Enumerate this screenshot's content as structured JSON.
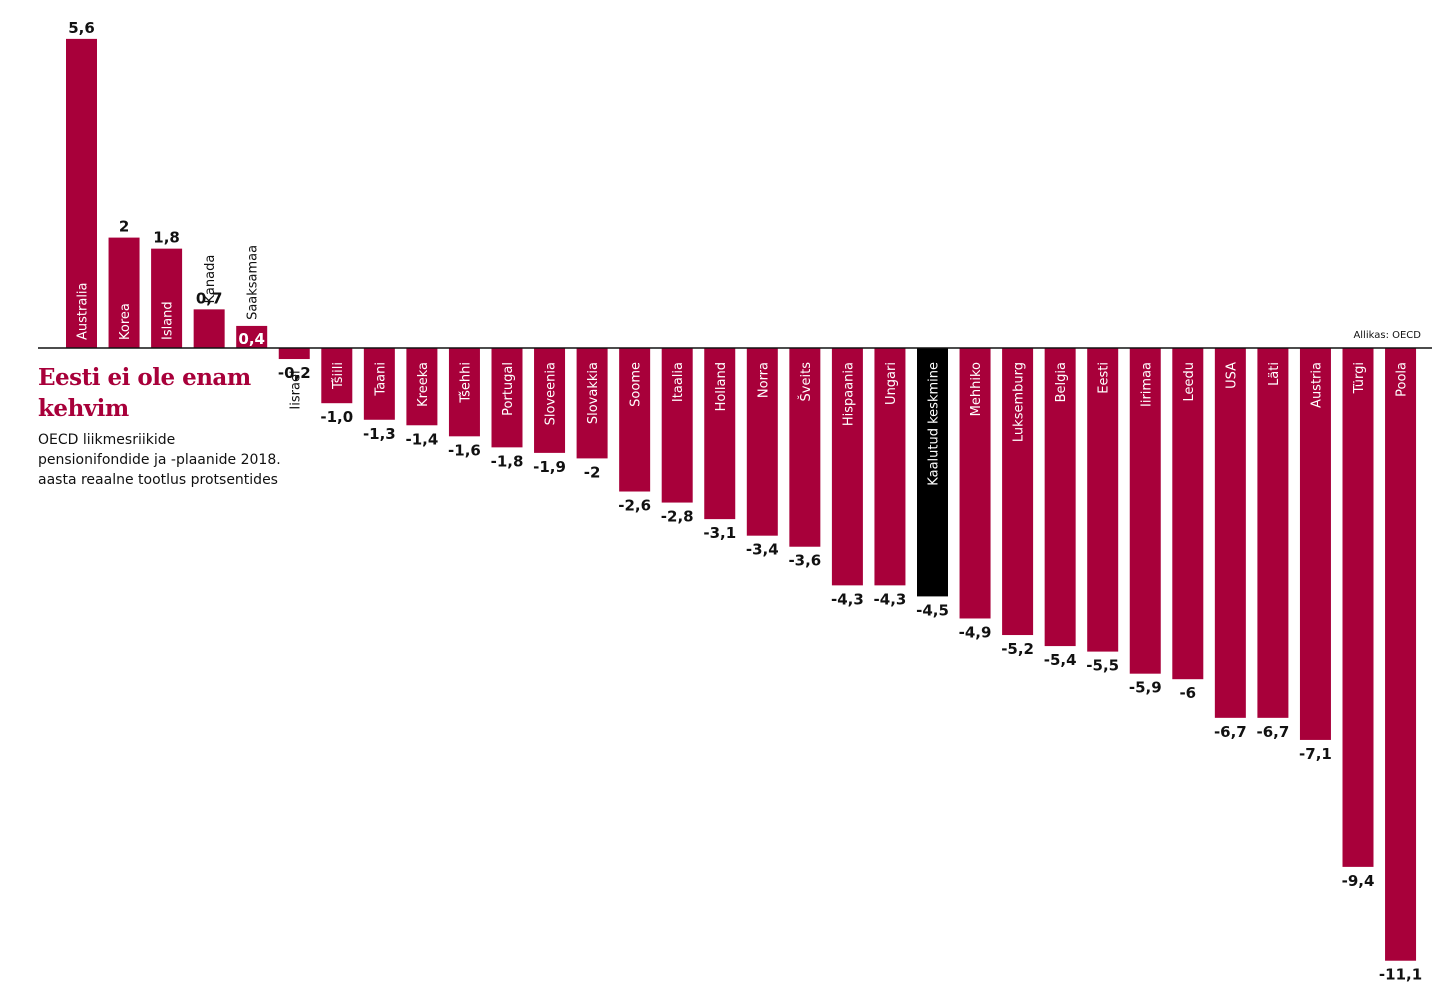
{
  "title": "Eesti ei ole enam kehvim",
  "subtitle": "OECD liikmesriikide pensionifondide ja -plaanide 2018. aasta reaalne tootlus protsentides",
  "source": "Allikas: OECD",
  "colors": {
    "bar": "#a8003a",
    "highlight": "#000000",
    "axis": "#111111"
  },
  "chart_data": {
    "type": "bar",
    "title": "Eesti ei ole enam kehvim",
    "subtitle": "OECD liikmesriikide pensionifondide ja -plaanide 2018. aasta reaalne tootlus protsentides",
    "xlabel": "",
    "ylabel": "",
    "ylim": [
      -11.1,
      5.6
    ],
    "grid": false,
    "legend": "none",
    "highlight": "Kaalutud keskmine",
    "categories": [
      "Australia",
      "Korea",
      "Island",
      "Kanada",
      "Saaksamaa",
      "Iisrael",
      "Tšiili",
      "Taani",
      "Kreeka",
      "Tšehhi",
      "Portugal",
      "Sloveenia",
      "Slovakkia",
      "Soome",
      "Itaalia",
      "Holland",
      "Norra",
      "Šveits",
      "Hispaania",
      "Ungari",
      "Kaalutud keskmine",
      "Mehhiko",
      "Luksemburg",
      "Belgia",
      "Eesti",
      "Iirimaa",
      "Leedu",
      "USA",
      "Läti",
      "Austria",
      "Türgi",
      "Poola"
    ],
    "values": [
      5.6,
      2,
      1.8,
      0.7,
      0.4,
      -0.2,
      -1.0,
      -1.3,
      -1.4,
      -1.6,
      -1.8,
      -1.9,
      -2,
      -2.6,
      -2.8,
      -3.1,
      -3.4,
      -3.6,
      -4.3,
      -4.3,
      -4.5,
      -4.9,
      -5.2,
      -5.4,
      -5.5,
      -5.9,
      -6,
      -6.7,
      -6.7,
      -7.1,
      -9.4,
      -11.1
    ],
    "value_labels": [
      "5,6",
      "2",
      "1,8",
      "0,7",
      "0,4",
      "-0,2",
      "-1,0",
      "-1,3",
      "-1,4",
      "-1,6",
      "-1,8",
      "-1,9",
      "-2",
      "-2,6",
      "-2,8",
      "-3,1",
      "-3,4",
      "-3,6",
      "-4,3",
      "-4,3",
      "-4,5",
      "-4,9",
      "-5,2",
      "-5,4",
      "-5,5",
      "-5,9",
      "-6",
      "-6,7",
      "-6,7",
      "-7,1",
      "-9,4",
      "-11,1"
    ]
  }
}
